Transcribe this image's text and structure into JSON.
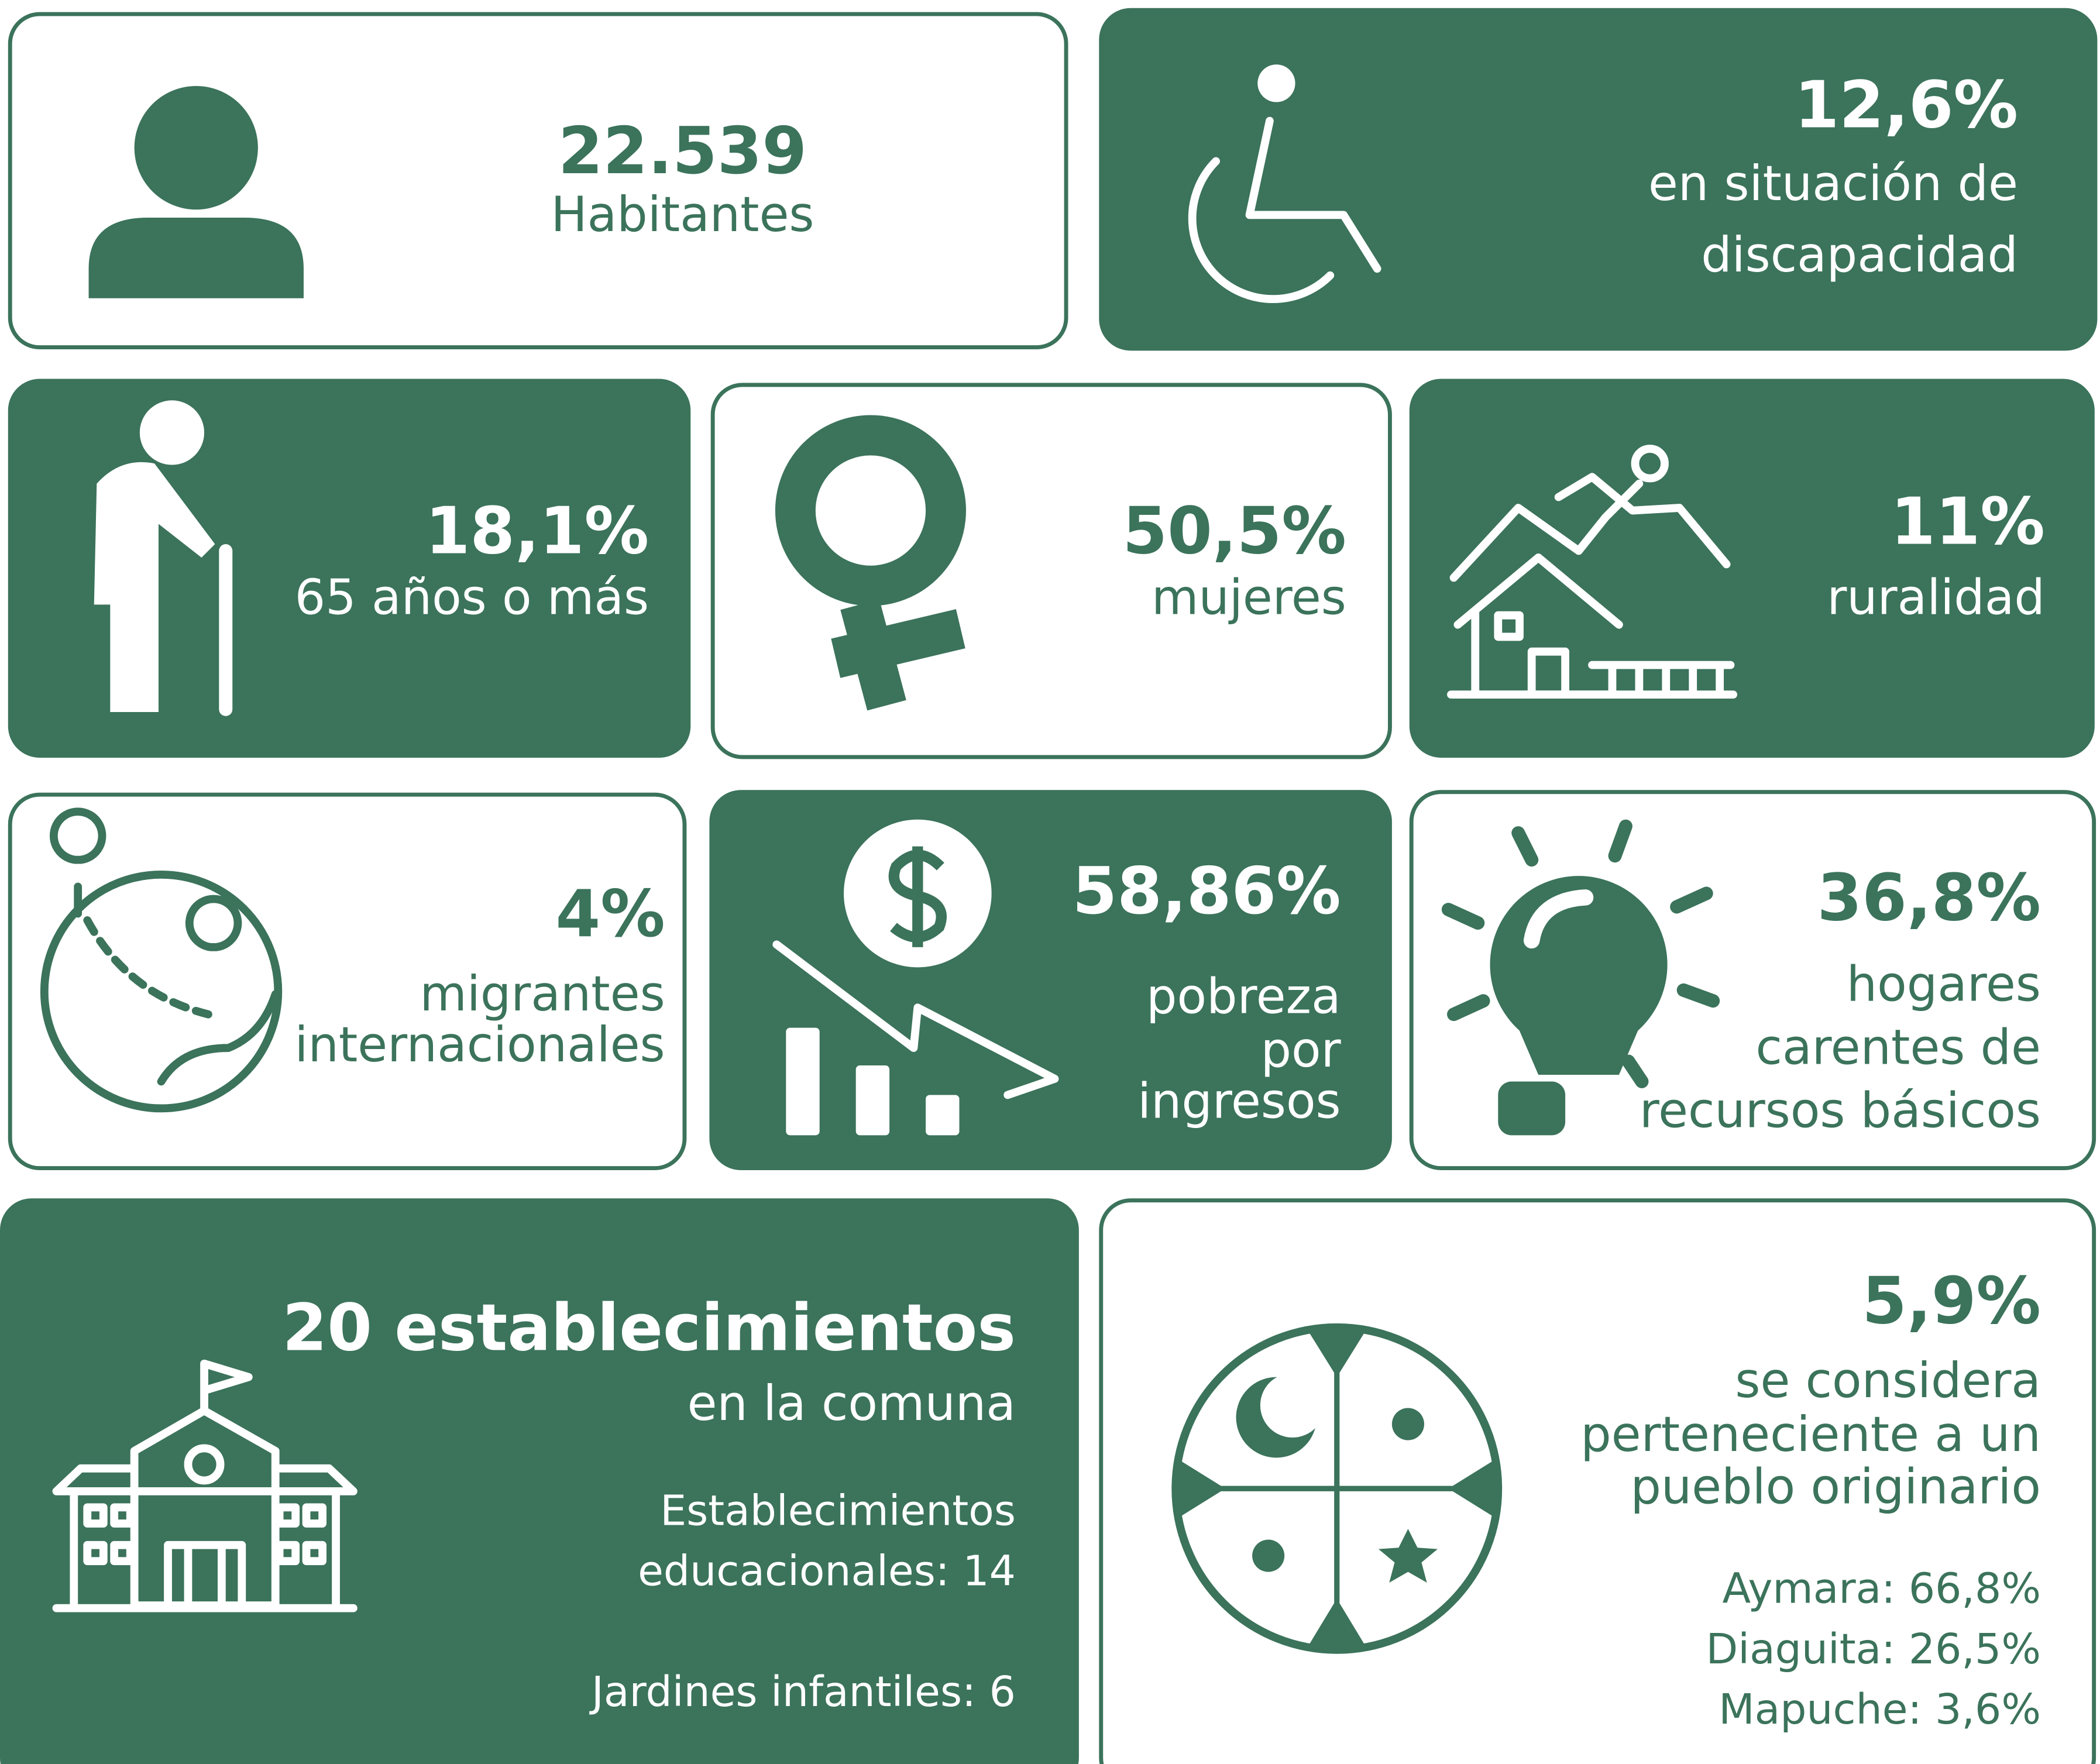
{
  "cards": [
    {
      "stat": "22.539",
      "label": [
        "Habitantes"
      ]
    },
    {
      "stat": "12,6%",
      "label": [
        "en situación de",
        "discapacidad"
      ]
    },
    {
      "stat": "18,1%",
      "label": [
        "65 años o más"
      ]
    },
    {
      "stat": "50,5%",
      "label": [
        "mujeres"
      ]
    },
    {
      "stat": "11%",
      "label": [
        "ruralidad"
      ]
    },
    {
      "stat": "4%",
      "label": [
        "migrantes",
        "internacionales"
      ]
    },
    {
      "stat": "58,86%",
      "label": [
        "pobreza",
        "por",
        "ingresos"
      ]
    },
    {
      "stat": "36,8%",
      "label": [
        "hogares",
        "carentes de",
        "recursos básicos"
      ]
    },
    {
      "stat": "20 establecimientos",
      "label": [
        "en la comuna"
      ],
      "details": [
        "Establecimientos",
        "educacionales: 14",
        "Jardines infantiles: 6"
      ]
    },
    {
      "stat": "5,9%",
      "label": [
        "se considera",
        "perteneciente a un",
        "pueblo originario"
      ],
      "details": [
        "Aymara: 66,8%",
        "Diaguita: 26,5%",
        "Mapuche: 3,6%"
      ]
    }
  ]
}
